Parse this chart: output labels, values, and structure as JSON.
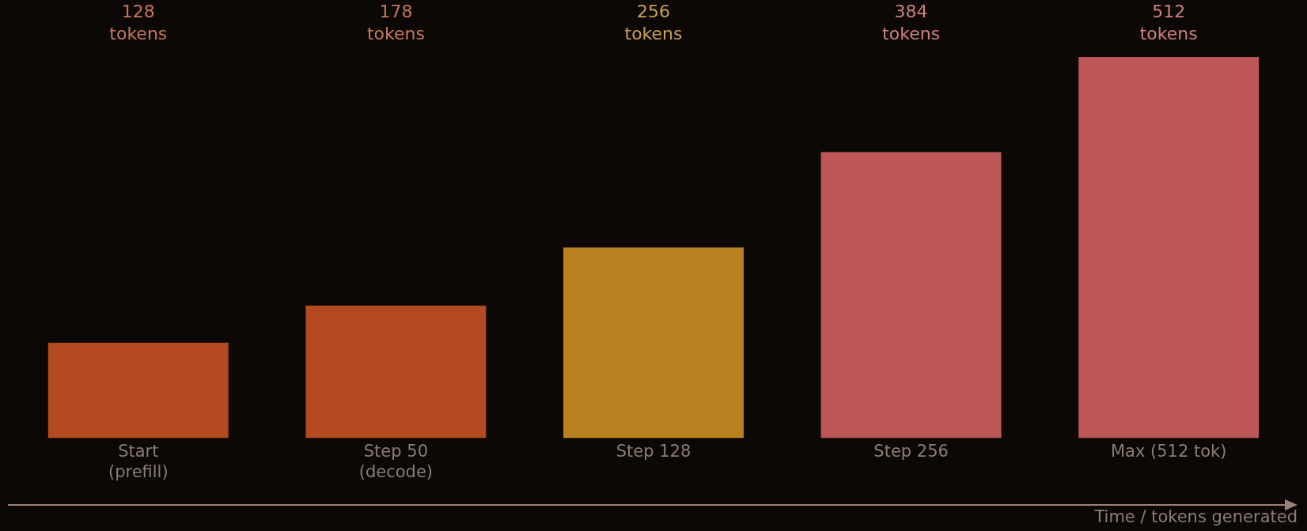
{
  "chart_data": {
    "type": "bar",
    "xlabel": "Time / tokens generated",
    "categories": [
      "Start\n(prefill)",
      "Step 50\n(decode)",
      "Step 128",
      "Step 256",
      "Max (512 tok)"
    ],
    "values": [
      128,
      178,
      256,
      384,
      512
    ],
    "colors": [
      "#b34a20",
      "#b34a20",
      "#b98020",
      "#bd5656",
      "#bd5656"
    ],
    "value_labels": [
      "128 tokens",
      "178 tokens",
      "256 tokens",
      "384 tokens",
      "512 tokens"
    ],
    "legend": false
  }
}
